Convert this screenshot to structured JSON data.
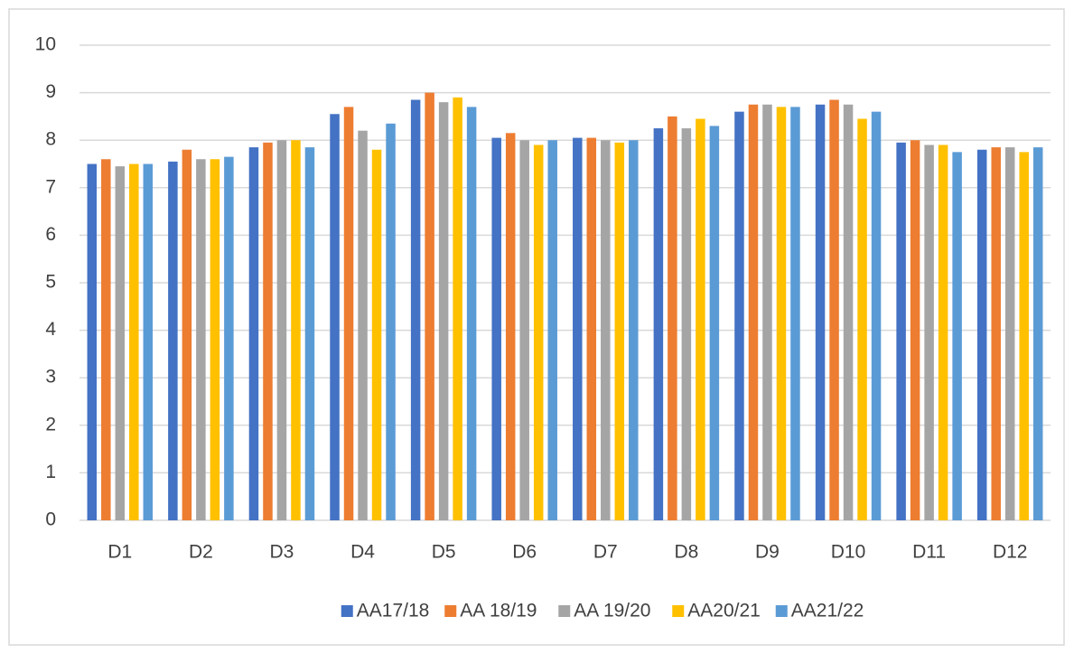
{
  "chart_data": {
    "type": "bar",
    "categories": [
      "D1",
      "D2",
      "D3",
      "D4",
      "D5",
      "D6",
      "D7",
      "D8",
      "D9",
      "D10",
      "D11",
      "D12"
    ],
    "series": [
      {
        "name": "AA17/18",
        "color": "#4472c4",
        "values": [
          7.5,
          7.55,
          7.85,
          8.55,
          8.85,
          8.05,
          8.05,
          8.25,
          8.6,
          8.75,
          7.95,
          7.8
        ]
      },
      {
        "name": "AA 18/19",
        "color": "#ed7d31",
        "values": [
          7.6,
          7.8,
          7.95,
          8.7,
          9.0,
          8.15,
          8.05,
          8.5,
          8.75,
          8.85,
          8.0,
          7.85
        ]
      },
      {
        "name": "AA 19/20",
        "color": "#a5a5a5",
        "values": [
          7.45,
          7.6,
          8.0,
          8.2,
          8.8,
          8.0,
          8.0,
          8.25,
          8.75,
          8.75,
          7.9,
          7.85
        ]
      },
      {
        "name": "AA20/21",
        "color": "#ffc000",
        "values": [
          7.5,
          7.6,
          8.0,
          7.8,
          8.9,
          7.9,
          7.95,
          8.45,
          8.7,
          8.45,
          7.9,
          7.75
        ]
      },
      {
        "name": "AA21/22",
        "color": "#5b9bd5",
        "values": [
          7.5,
          7.65,
          7.85,
          8.35,
          8.7,
          8.0,
          8.0,
          8.3,
          8.7,
          8.6,
          7.75,
          7.85
        ]
      }
    ],
    "ylim": [
      0,
      10
    ],
    "yticks": [
      0,
      1,
      2,
      3,
      4,
      5,
      6,
      7,
      8,
      9,
      10
    ],
    "grid": true,
    "legend": "bottom"
  }
}
